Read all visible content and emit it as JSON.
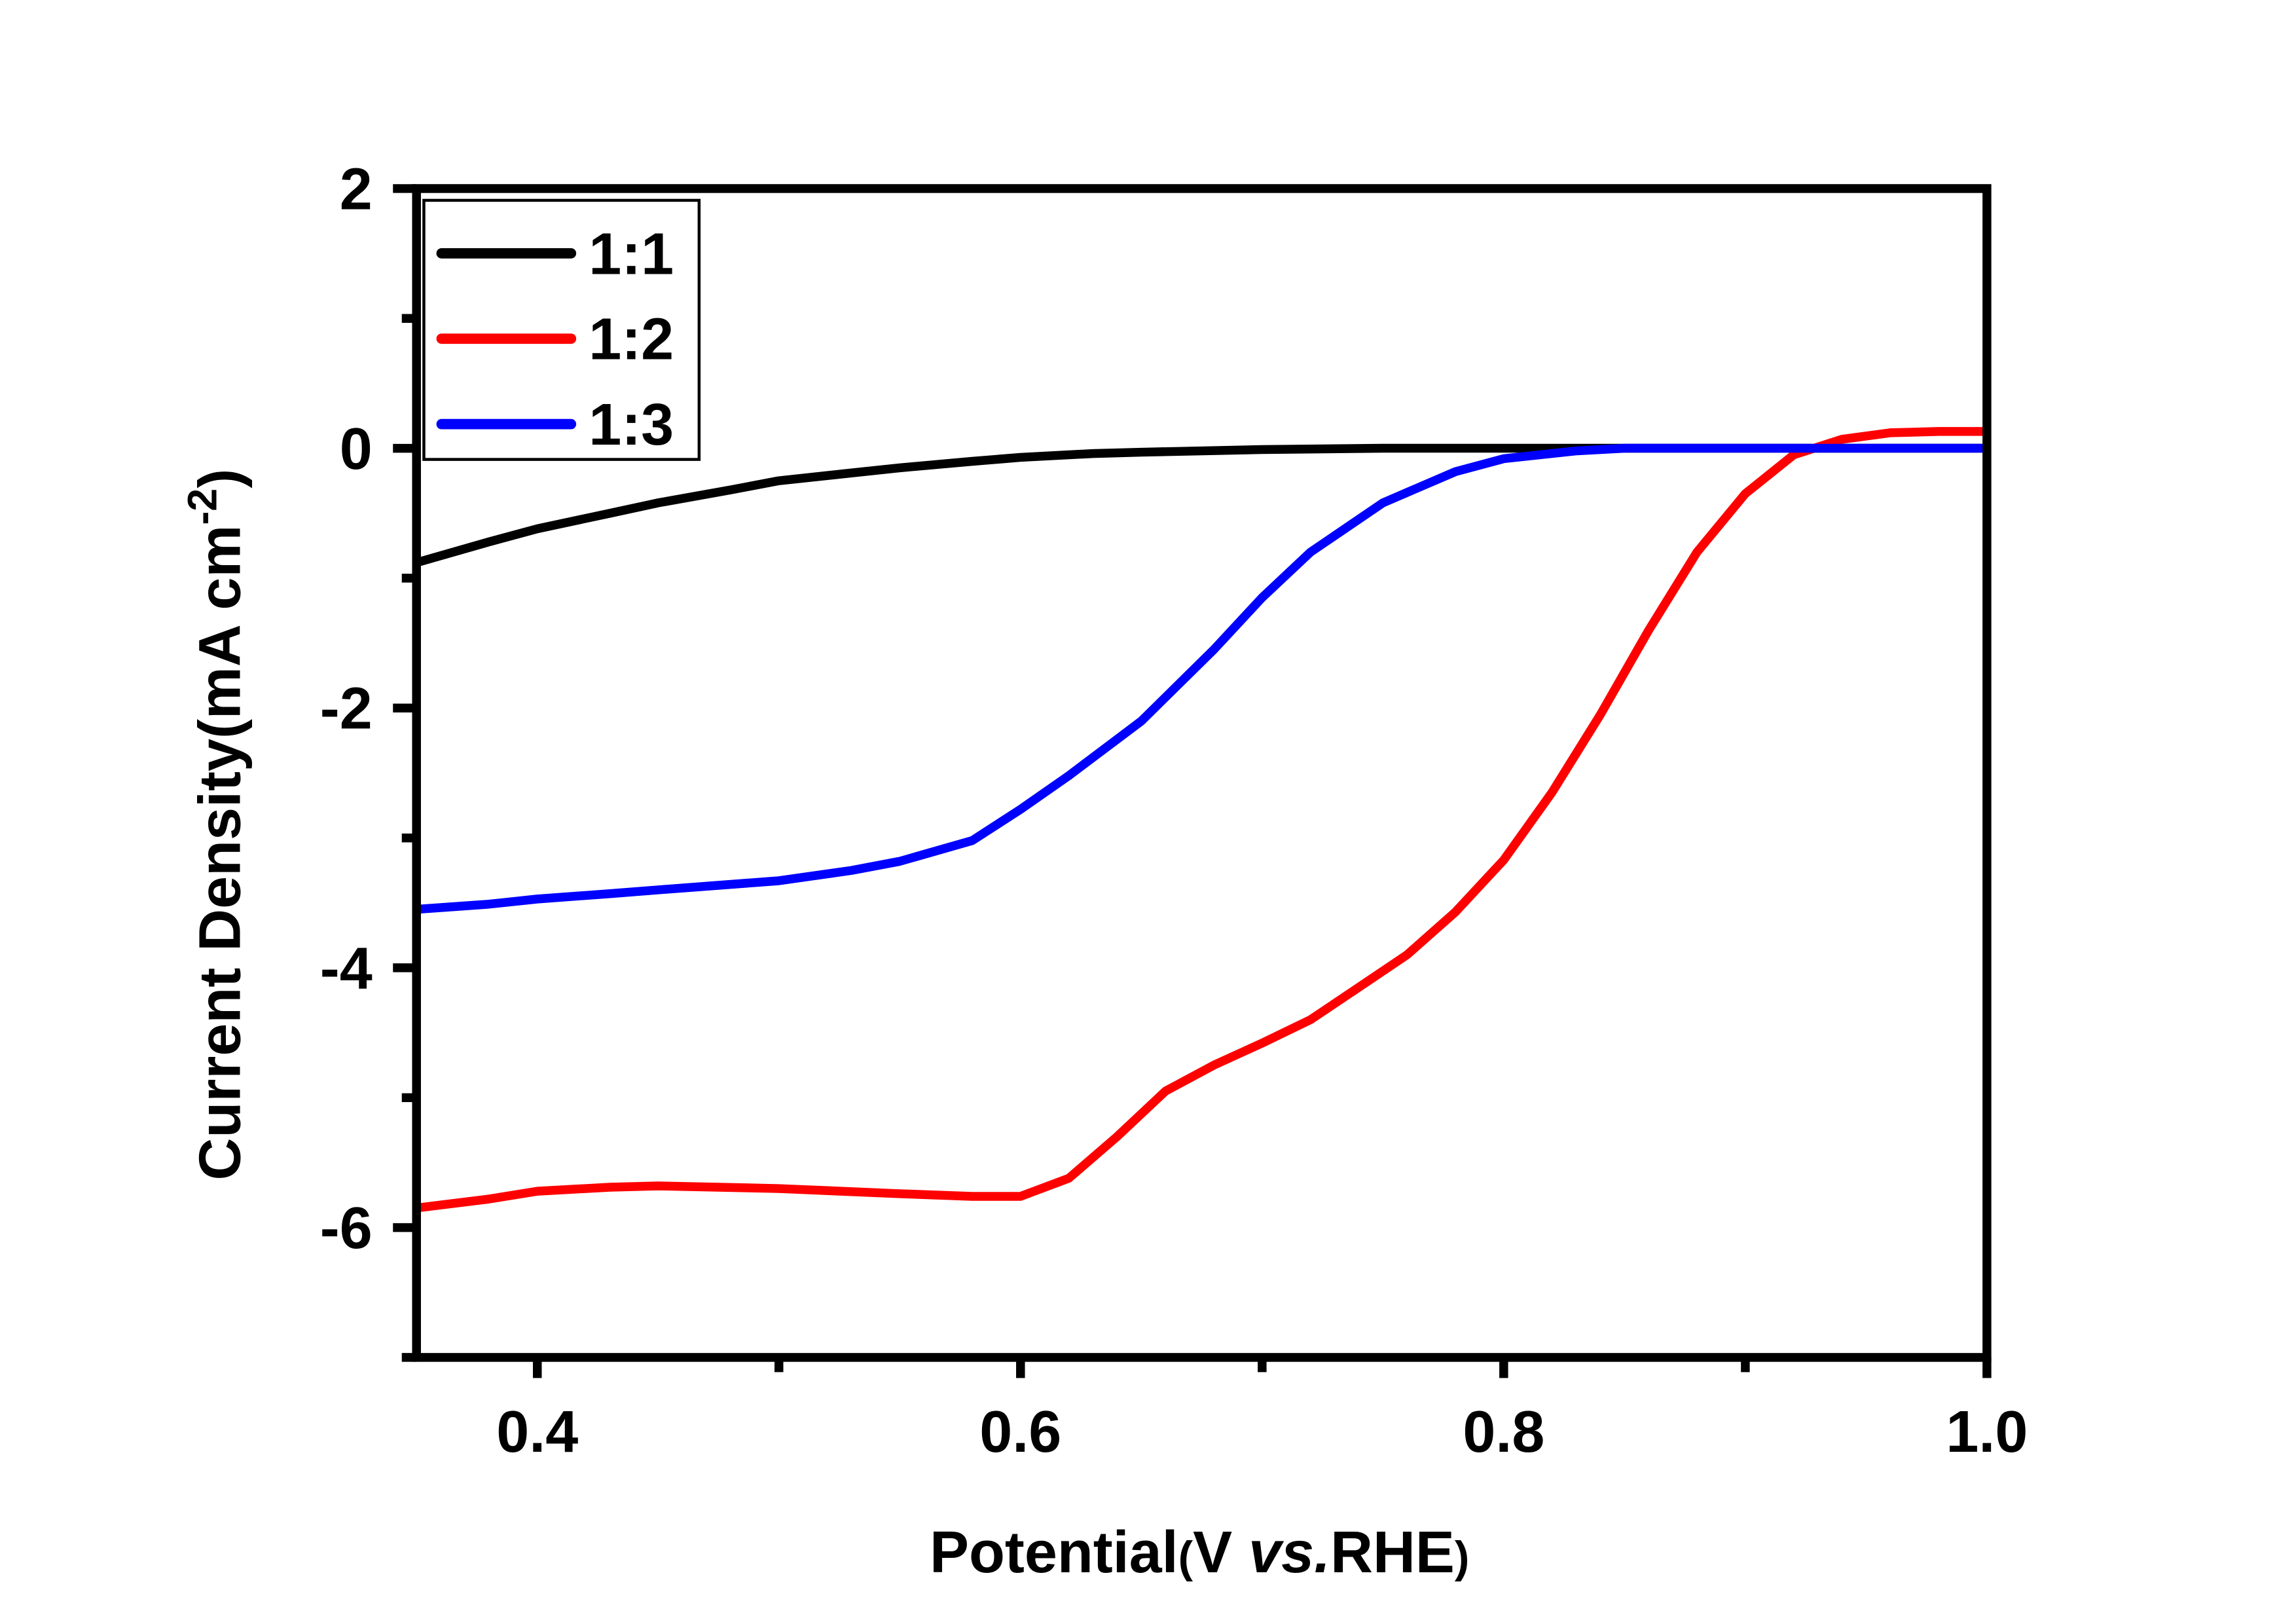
{
  "chart_data": {
    "type": "line",
    "title": "",
    "xlabel": {
      "main": "Potential",
      "open": "(",
      "v": "V ",
      "vs": "vs.",
      "ref": "RHE",
      "close": ")"
    },
    "ylabel": {
      "main": "Current Density(mA cm",
      "sup": "-2",
      "close": ")"
    },
    "xlim": [
      0.35,
      1.0
    ],
    "ylim": [
      -7,
      2
    ],
    "xticks": [
      0.4,
      0.6,
      0.8,
      1.0
    ],
    "xtick_labels": [
      "0.4",
      "0.6",
      "0.8",
      "1.0"
    ],
    "xminor": [
      0.5,
      0.7,
      0.9
    ],
    "yticks": [
      2,
      0,
      -2,
      -4,
      -6
    ],
    "ytick_labels": [
      "2",
      "0",
      "-2",
      "-4",
      "-6"
    ],
    "yminor": [
      1,
      -1,
      -3,
      -5,
      -7
    ],
    "grid": false,
    "legend_position": "top-left",
    "series": [
      {
        "name": "1:1",
        "color": "#000000",
        "x": [
          0.35,
          0.38,
          0.4,
          0.43,
          0.45,
          0.48,
          0.5,
          0.53,
          0.55,
          0.58,
          0.6,
          0.63,
          0.65,
          0.7,
          0.75,
          0.8,
          0.9,
          1.0
        ],
        "y": [
          -0.88,
          -0.72,
          -0.62,
          -0.5,
          -0.42,
          -0.32,
          -0.25,
          -0.19,
          -0.15,
          -0.1,
          -0.07,
          -0.04,
          -0.03,
          -0.01,
          0,
          0,
          0,
          0
        ]
      },
      {
        "name": "1:2",
        "color": "#ff0000",
        "x": [
          0.35,
          0.38,
          0.4,
          0.43,
          0.45,
          0.5,
          0.55,
          0.58,
          0.6,
          0.62,
          0.64,
          0.66,
          0.68,
          0.7,
          0.72,
          0.74,
          0.76,
          0.78,
          0.8,
          0.82,
          0.84,
          0.86,
          0.88,
          0.9,
          0.92,
          0.94,
          0.96,
          0.98,
          1.0
        ],
        "y": [
          -5.85,
          -5.78,
          -5.72,
          -5.69,
          -5.68,
          -5.7,
          -5.74,
          -5.76,
          -5.76,
          -5.62,
          -5.3,
          -4.95,
          -4.75,
          -4.58,
          -4.4,
          -4.15,
          -3.9,
          -3.57,
          -3.17,
          -2.65,
          -2.05,
          -1.4,
          -0.8,
          -0.35,
          -0.05,
          0.07,
          0.12,
          0.13,
          0.13
        ]
      },
      {
        "name": "1:3",
        "color": "#0000ff",
        "x": [
          0.35,
          0.38,
          0.4,
          0.43,
          0.45,
          0.5,
          0.53,
          0.55,
          0.58,
          0.6,
          0.62,
          0.65,
          0.68,
          0.7,
          0.72,
          0.75,
          0.78,
          0.8,
          0.83,
          0.85,
          0.9,
          1.0
        ],
        "y": [
          -3.55,
          -3.51,
          -3.47,
          -3.43,
          -3.4,
          -3.33,
          -3.25,
          -3.18,
          -3.02,
          -2.78,
          -2.52,
          -2.1,
          -1.55,
          -1.15,
          -0.8,
          -0.42,
          -0.18,
          -0.08,
          -0.02,
          0,
          0,
          0
        ]
      }
    ]
  }
}
